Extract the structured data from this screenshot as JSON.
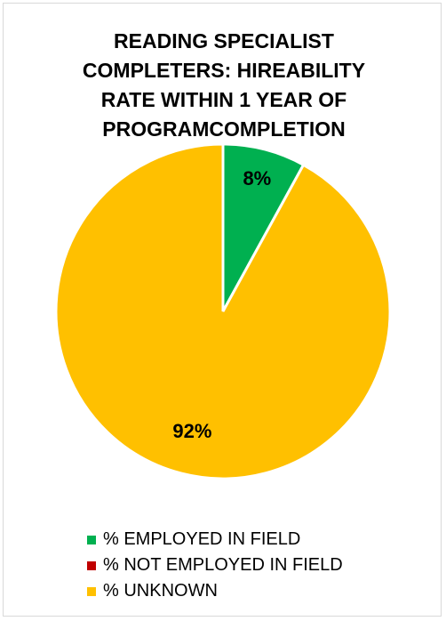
{
  "chart_data": {
    "type": "pie",
    "title_lines": [
      "READING SPECIALIST",
      "COMPLETERS: HIREABILITY",
      "RATE WITHIN 1 YEAR OF",
      "PROGRAMCOMPLETION"
    ],
    "slices": [
      {
        "name": "% EMPLOYED IN FIELD",
        "value": 8,
        "label": "8%",
        "color": "#00b050"
      },
      {
        "name": "% NOT EMPLOYED IN FIELD",
        "value": 0,
        "label": "",
        "color": "#c00000"
      },
      {
        "name": "% UNKNOWN",
        "value": 92,
        "label": "92%",
        "color": "#ffc000"
      }
    ],
    "start_angle_deg": 0,
    "direction": "clockwise",
    "legend_position": "bottom"
  }
}
